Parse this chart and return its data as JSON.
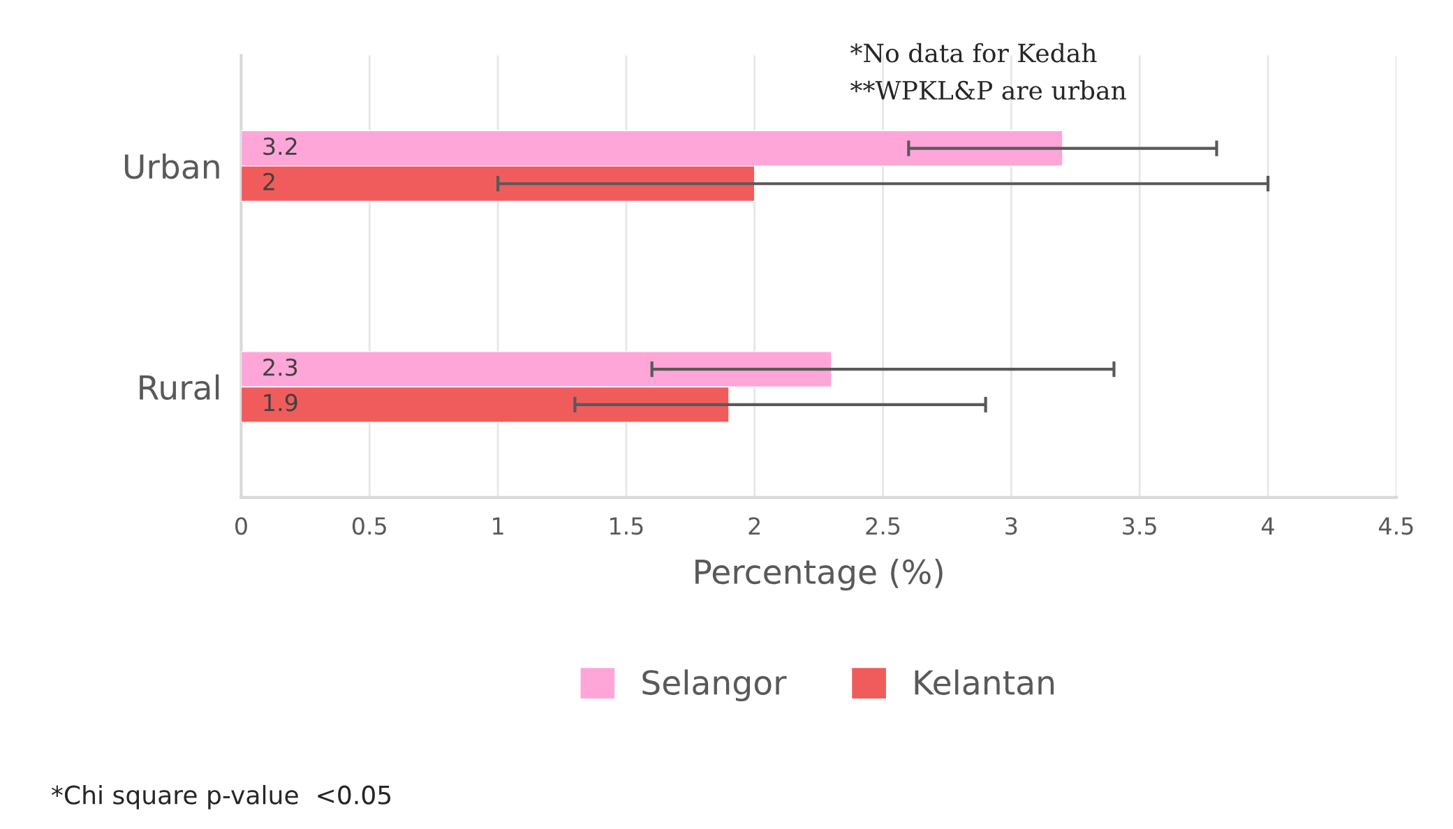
{
  "chart_data": {
    "type": "bar",
    "orientation": "horizontal",
    "categories": [
      "Urban",
      "Rural"
    ],
    "series": [
      {
        "name": "Selangor",
        "color": "#ffa6d9",
        "values": [
          3.2,
          2.3
        ],
        "errors": [
          [
            2.6,
            3.8
          ],
          [
            1.6,
            3.4
          ]
        ]
      },
      {
        "name": "Kelantan",
        "color": "#f05c5c",
        "values": [
          2,
          1.9
        ],
        "errors": [
          [
            1.0,
            4.0
          ],
          [
            1.3,
            2.9
          ]
        ]
      }
    ],
    "xlabel": "Percentage (%)",
    "xlim": [
      0,
      4.5
    ],
    "xticks": [
      0,
      0.5,
      1,
      1.5,
      2,
      2.5,
      3,
      3.5,
      4,
      4.5
    ],
    "grid": "x",
    "legend": "bottom",
    "data_labels": true,
    "annotations": [
      "*No data for Kedah",
      "**WPKL&P are urban",
      "*Chi square p-value  <0.05"
    ]
  }
}
